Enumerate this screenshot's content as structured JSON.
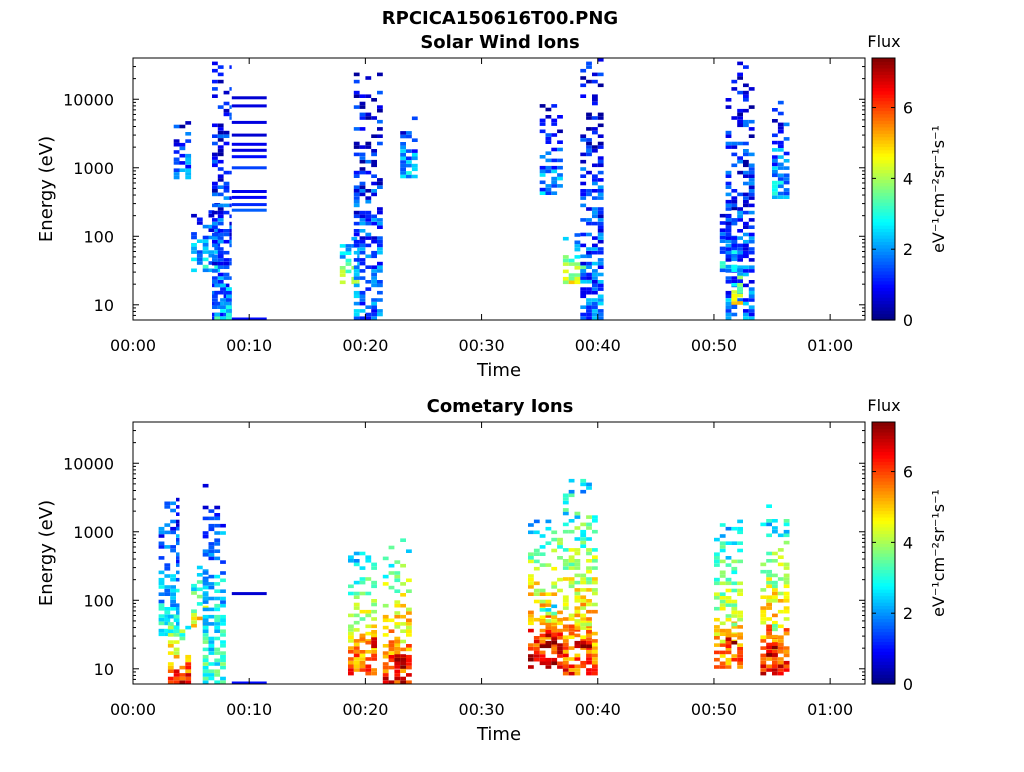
{
  "figure": {
    "title": "RPCICA150616T00.PNG"
  },
  "colors": {
    "colormap": "jet",
    "background": "#ffffff",
    "axes": "#000000"
  },
  "chart_data": [
    {
      "type": "heatmap",
      "title": "Solar Wind Ions",
      "xlabel": "Time",
      "ylabel": "Energy (eV)",
      "xlim": [
        "00:00",
        "01:03"
      ],
      "xticks": [
        "00:00",
        "00:10",
        "00:20",
        "00:30",
        "00:40",
        "00:50",
        "01:00"
      ],
      "ylim": [
        6,
        40000
      ],
      "yscale": "log",
      "yticks": [
        10,
        100,
        1000,
        10000
      ],
      "ytick_labels": [
        "10",
        "100",
        "1000",
        "10000"
      ],
      "colorbar": {
        "title": "Flux",
        "label": "eV⁻¹cm⁻²sr⁻¹s⁻¹",
        "range": [
          0,
          7.4
        ],
        "ticks": [
          0,
          2,
          4,
          6
        ],
        "tick_labels": [
          "0",
          "2",
          "4",
          "6"
        ]
      },
      "bursts": [
        {
          "t_start": 3.5,
          "t_end": 5.0,
          "e_min": 600,
          "e_max": 5000,
          "flux": 1.8
        },
        {
          "t_start": 5.0,
          "t_end": 7.5,
          "e_min": 30,
          "e_max": 300,
          "flux": 2.2
        },
        {
          "t_start": 6.8,
          "t_end": 8.5,
          "e_min": 6,
          "e_max": 38000,
          "flux": 1.5
        },
        {
          "t_start": 7.0,
          "t_end": 8.5,
          "e_min": 6,
          "e_max": 40,
          "flux": 2.4
        },
        {
          "t_start": 17.8,
          "t_end": 19.5,
          "e_min": 20,
          "e_max": 90,
          "flux": 3.8
        },
        {
          "t_start": 19.0,
          "t_end": 21.5,
          "e_min": 6,
          "e_max": 22000,
          "flux": 1.6
        },
        {
          "t_start": 23.0,
          "t_end": 24.5,
          "e_min": 700,
          "e_max": 7000,
          "flux": 2.0
        },
        {
          "t_start": 35.0,
          "t_end": 37.0,
          "e_min": 400,
          "e_max": 8000,
          "flux": 1.8
        },
        {
          "t_start": 37.0,
          "t_end": 39.0,
          "e_min": 20,
          "e_max": 100,
          "flux": 4.0
        },
        {
          "t_start": 38.5,
          "t_end": 40.5,
          "e_min": 6,
          "e_max": 38000,
          "flux": 1.6
        },
        {
          "t_start": 50.5,
          "t_end": 52.0,
          "e_min": 30,
          "e_max": 300,
          "flux": 2.2
        },
        {
          "t_start": 51.0,
          "t_end": 53.5,
          "e_min": 6,
          "e_max": 38000,
          "flux": 1.6
        },
        {
          "t_start": 51.5,
          "t_end": 52.5,
          "e_min": 10,
          "e_max": 60,
          "flux": 3.9
        },
        {
          "t_start": 55.0,
          "t_end": 56.5,
          "e_min": 350,
          "e_max": 9000,
          "flux": 2.1
        }
      ],
      "lines": [
        {
          "t_start": 8.5,
          "t_end": 11.5,
          "energy": 10500,
          "flux": 0.6
        },
        {
          "t_start": 8.5,
          "t_end": 11.5,
          "energy": 8000,
          "flux": 0.7
        },
        {
          "t_start": 8.5,
          "t_end": 11.5,
          "energy": 4600,
          "flux": 0.7
        },
        {
          "t_start": 8.5,
          "t_end": 11.5,
          "energy": 3000,
          "flux": 0.6
        },
        {
          "t_start": 8.5,
          "t_end": 11.5,
          "energy": 2200,
          "flux": 0.8
        },
        {
          "t_start": 8.5,
          "t_end": 11.5,
          "energy": 1800,
          "flux": 0.7
        },
        {
          "t_start": 8.5,
          "t_end": 11.5,
          "energy": 1450,
          "flux": 1.0
        },
        {
          "t_start": 8.5,
          "t_end": 11.5,
          "energy": 1000,
          "flux": 1.4
        },
        {
          "t_start": 8.5,
          "t_end": 11.5,
          "energy": 450,
          "flux": 0.8
        },
        {
          "t_start": 8.5,
          "t_end": 11.5,
          "energy": 370,
          "flux": 0.9
        },
        {
          "t_start": 8.5,
          "t_end": 11.5,
          "energy": 290,
          "flux": 1.2
        },
        {
          "t_start": 8.5,
          "t_end": 11.5,
          "energy": 240,
          "flux": 1.6
        },
        {
          "t_start": 8.5,
          "t_end": 11.5,
          "energy": 6.2,
          "flux": 1.0
        }
      ]
    },
    {
      "type": "heatmap",
      "title": "Cometary Ions",
      "xlabel": "Time",
      "ylabel": "Energy (eV)",
      "xlim": [
        "00:00",
        "01:03"
      ],
      "xticks": [
        "00:00",
        "00:10",
        "00:20",
        "00:30",
        "00:40",
        "00:50",
        "01:00"
      ],
      "ylim": [
        6,
        40000
      ],
      "yscale": "log",
      "yticks": [
        10,
        100,
        1000,
        10000
      ],
      "ytick_labels": [
        "10",
        "100",
        "1000",
        "10000"
      ],
      "colorbar": {
        "title": "Flux",
        "label": "eV⁻¹cm⁻²sr⁻¹s⁻¹",
        "range": [
          0,
          7.4
        ],
        "ticks": [
          0,
          2,
          4,
          6
        ],
        "tick_labels": [
          "0",
          "2",
          "4",
          "6"
        ]
      },
      "bursts": [
        {
          "t_start": 2.2,
          "t_end": 4.0,
          "e_min": 30,
          "e_max": 3500,
          "flux": 2.5
        },
        {
          "t_start": 3.0,
          "t_end": 5.0,
          "e_min": 6,
          "e_max": 60,
          "flux": 6.0
        },
        {
          "t_start": 5.0,
          "t_end": 6.5,
          "e_min": 40,
          "e_max": 300,
          "flux": 4.5
        },
        {
          "t_start": 6.0,
          "t_end": 8.0,
          "e_min": 6,
          "e_max": 4500,
          "flux": 3.0
        },
        {
          "t_start": 18.5,
          "t_end": 21.0,
          "e_min": 8,
          "e_max": 500,
          "flux": 5.5
        },
        {
          "t_start": 19.5,
          "t_end": 21.0,
          "e_min": 20,
          "e_max": 60,
          "flux": 6.5
        },
        {
          "t_start": 21.5,
          "t_end": 24.0,
          "e_min": 6,
          "e_max": 1000,
          "flux": 5.8
        },
        {
          "t_start": 22.5,
          "t_end": 23.5,
          "e_min": 10,
          "e_max": 50,
          "flux": 6.8
        },
        {
          "t_start": 34.0,
          "t_end": 37.0,
          "e_min": 10,
          "e_max": 1500,
          "flux": 6.2
        },
        {
          "t_start": 35.0,
          "t_end": 36.5,
          "e_min": 20,
          "e_max": 80,
          "flux": 7.0
        },
        {
          "t_start": 37.0,
          "t_end": 40.0,
          "e_min": 8,
          "e_max": 6500,
          "flux": 5.5
        },
        {
          "t_start": 38.0,
          "t_end": 39.5,
          "e_min": 20,
          "e_max": 60,
          "flux": 6.8
        },
        {
          "t_start": 50.0,
          "t_end": 52.5,
          "e_min": 10,
          "e_max": 1500,
          "flux": 5.2
        },
        {
          "t_start": 51.0,
          "t_end": 52.0,
          "e_min": 20,
          "e_max": 60,
          "flux": 6.5
        },
        {
          "t_start": 54.0,
          "t_end": 56.5,
          "e_min": 8,
          "e_max": 2500,
          "flux": 5.8
        },
        {
          "t_start": 54.5,
          "t_end": 55.5,
          "e_min": 15,
          "e_max": 50,
          "flux": 7.0
        }
      ],
      "lines": [
        {
          "t_start": 8.5,
          "t_end": 11.5,
          "energy": 125,
          "flux": 0.6
        },
        {
          "t_start": 8.5,
          "t_end": 11.5,
          "energy": 6.2,
          "flux": 1.0
        }
      ]
    }
  ]
}
